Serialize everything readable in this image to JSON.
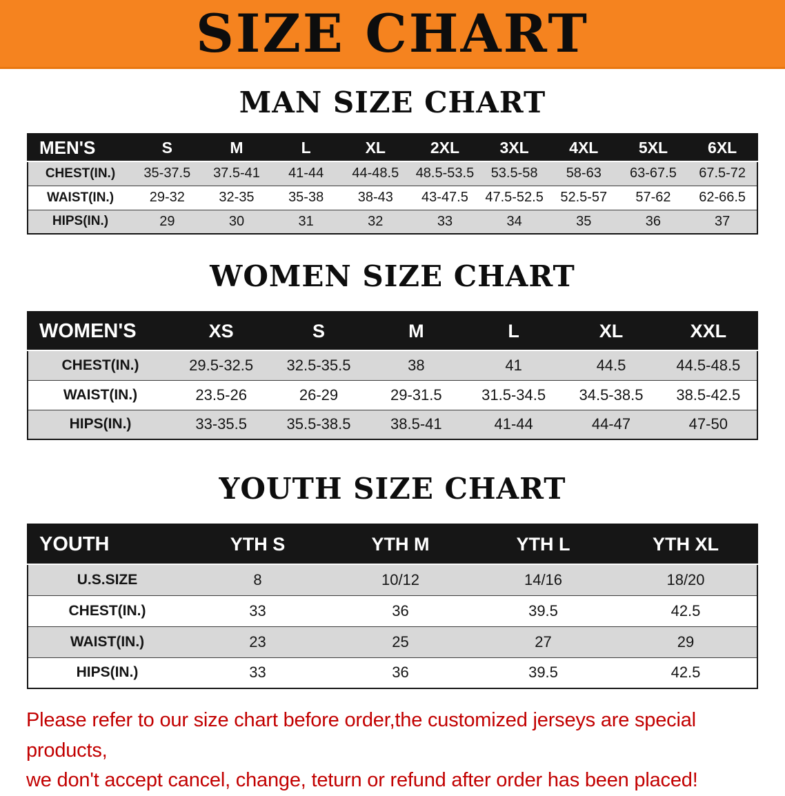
{
  "banner": {
    "title": "SIZE CHART",
    "background_color": "#F5831F",
    "text_color": "#0D0D0D"
  },
  "sections": [
    {
      "id": "men",
      "heading": "MAN SIZE CHART",
      "table": {
        "header": [
          "MEN'S",
          "S",
          "M",
          "L",
          "XL",
          "2XL",
          "3XL",
          "4XL",
          "5XL",
          "6XL"
        ],
        "rows": [
          {
            "label": "CHEST(IN.)",
            "values": [
              "35-37.5",
              "37.5-41",
              "41-44",
              "44-48.5",
              "48.5-53.5",
              "53.5-58",
              "58-63",
              "63-67.5",
              "67.5-72"
            ]
          },
          {
            "label": "WAIST(IN.)",
            "values": [
              "29-32",
              "32-35",
              "35-38",
              "38-43",
              "43-47.5",
              "47.5-52.5",
              "52.5-57",
              "57-62",
              "62-66.5"
            ]
          },
          {
            "label": "HIPS(IN.)",
            "values": [
              "29",
              "30",
              "31",
              "32",
              "33",
              "34",
              "35",
              "36",
              "37"
            ]
          }
        ]
      }
    },
    {
      "id": "women",
      "heading": "WOMEN SIZE CHART",
      "table": {
        "header": [
          "WOMEN'S",
          "XS",
          "S",
          "M",
          "L",
          "XL",
          "XXL"
        ],
        "rows": [
          {
            "label": "CHEST(IN.)",
            "values": [
              "29.5-32.5",
              "32.5-35.5",
              "38",
              "41",
              "44.5",
              "44.5-48.5"
            ]
          },
          {
            "label": "WAIST(IN.)",
            "values": [
              "23.5-26",
              "26-29",
              "29-31.5",
              "31.5-34.5",
              "34.5-38.5",
              "38.5-42.5"
            ]
          },
          {
            "label": "HIPS(IN.)",
            "values": [
              "33-35.5",
              "35.5-38.5",
              "38.5-41",
              "41-44",
              "44-47",
              "47-50"
            ]
          }
        ]
      }
    },
    {
      "id": "youth",
      "heading": "YOUTH SIZE CHART",
      "table": {
        "header": [
          "YOUTH",
          "YTH S",
          "YTH M",
          "YTH L",
          "YTH XL"
        ],
        "rows": [
          {
            "label": "U.S.SIZE",
            "values": [
              "8",
              "10/12",
              "14/16",
              "18/20"
            ]
          },
          {
            "label": "CHEST(IN.)",
            "values": [
              "33",
              "36",
              "39.5",
              "42.5"
            ]
          },
          {
            "label": "WAIST(IN.)",
            "values": [
              "23",
              "25",
              "27",
              "29"
            ]
          },
          {
            "label": "HIPS(IN.)",
            "values": [
              "33",
              "36",
              "39.5",
              "42.5"
            ]
          }
        ]
      }
    }
  ],
  "footer": {
    "line1": "Please refer to our size chart before order,the customized jerseys are special products,",
    "line2": "we don't accept cancel, change, teturn or refund after order has been placed!",
    "text_color": "#C20000"
  }
}
